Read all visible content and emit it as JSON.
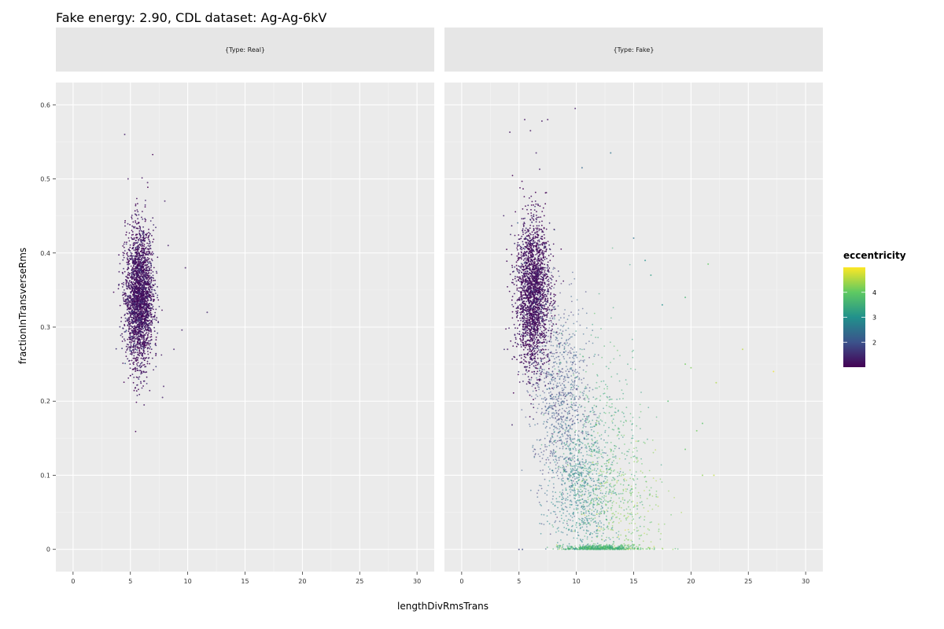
{
  "chart_data": {
    "type": "scatter",
    "title": "Fake energy: 2.90, CDL dataset: Ag-Ag-6kV",
    "xlabel": "lengthDivRmsTrans",
    "ylabel": "fractionInTransverseRms",
    "xlim": [
      -1.5,
      31.5
    ],
    "ylim": [
      -0.03,
      0.63
    ],
    "x_ticks": [
      0,
      5,
      10,
      15,
      20,
      25,
      30
    ],
    "x_tick_labels": [
      "0",
      "5",
      "10",
      "15",
      "20",
      "25",
      "30"
    ],
    "y_ticks": [
      0,
      0.1,
      0.2,
      0.3,
      0.4,
      0.5,
      0.6
    ],
    "y_tick_labels": [
      "0",
      "0.1",
      "0.2",
      "0.3",
      "0.4",
      "0.5",
      "0.6"
    ],
    "grid": true,
    "legend": {
      "title": "eccentricity",
      "placement": "right",
      "type": "colorbar",
      "range": [
        1.0,
        5.0
      ],
      "ticks": [
        2,
        3,
        4
      ],
      "tick_labels": [
        "2",
        "3",
        "4"
      ],
      "colors": [
        "#440154",
        "#3b528b",
        "#21918c",
        "#5ec962",
        "#fde725"
      ]
    },
    "facets": [
      {
        "strip_label": "{Type: Real}",
        "clusters": [
          {
            "center": [
              5.8,
              0.34
            ],
            "spread": [
              0.6,
              0.045
            ],
            "count": 2600,
            "eccentricity": 1.2
          }
        ],
        "outliers": [
          [
            4.5,
            0.56,
            1.3
          ],
          [
            11.7,
            0.32,
            1.4
          ],
          [
            9.8,
            0.38,
            1.3
          ],
          [
            9.5,
            0.296,
            1.3
          ],
          [
            8.0,
            0.47,
            1.3
          ],
          [
            8.3,
            0.41,
            1.3
          ],
          [
            7.9,
            0.22,
            1.3
          ],
          [
            8.8,
            0.27,
            1.3
          ],
          [
            4.8,
            0.5,
            1.2
          ],
          [
            6.5,
            0.495,
            1.2
          ],
          [
            6.2,
            0.195,
            1.2
          ],
          [
            7.8,
            0.205,
            1.3
          ]
        ]
      },
      {
        "strip_label": "{Type: Fake}",
        "clusters": [
          {
            "center": [
              6.2,
              0.345
            ],
            "spread": [
              0.75,
              0.05
            ],
            "count": 2200,
            "eccentricity": 1.15
          },
          {
            "center": [
              8.6,
              0.2
            ],
            "spread": [
              1.2,
              0.07
            ],
            "count": 900,
            "eccentricity": 2.0
          },
          {
            "center": [
              10.5,
              0.08
            ],
            "spread": [
              1.3,
              0.05
            ],
            "count": 700,
            "eccentricity": 2.8
          },
          {
            "center": [
              12.5,
              0.12
            ],
            "spread": [
              1.8,
              0.08
            ],
            "count": 500,
            "eccentricity": 3.5
          },
          {
            "center": [
              14.0,
              0.05
            ],
            "spread": [
              2.0,
              0.05
            ],
            "count": 350,
            "eccentricity": 4.2
          },
          {
            "center": [
              12.0,
              0.002
            ],
            "spread": [
              1.5,
              0.002
            ],
            "count": 450,
            "eccentricity": 3.6
          }
        ],
        "outliers": [
          [
            9.9,
            0.595,
            1.3
          ],
          [
            5.5,
            0.58,
            1.2
          ],
          [
            7.0,
            0.578,
            1.2
          ],
          [
            7.5,
            0.58,
            1.2
          ],
          [
            4.2,
            0.563,
            1.2
          ],
          [
            6.0,
            0.565,
            1.2
          ],
          [
            6.5,
            0.535,
            1.3
          ],
          [
            15.0,
            0.42,
            2.5
          ],
          [
            16.0,
            0.39,
            3.0
          ],
          [
            19.5,
            0.34,
            3.6
          ],
          [
            20.0,
            0.245,
            4.2
          ],
          [
            22.2,
            0.225,
            4.5
          ],
          [
            24.5,
            0.27,
            4.6
          ],
          [
            27.2,
            0.24,
            4.9
          ],
          [
            21.5,
            0.385,
            4.0
          ],
          [
            19.5,
            0.25,
            4.1
          ],
          [
            16.5,
            0.37,
            3.2
          ],
          [
            18.0,
            0.2,
            3.8
          ],
          [
            21.0,
            0.1,
            4.3
          ],
          [
            19.5,
            0.135,
            4.0
          ],
          [
            20.5,
            0.16,
            4.1
          ],
          [
            17.5,
            0.33,
            3.0
          ],
          [
            21.0,
            0.17,
            3.9
          ],
          [
            22.0,
            0.1,
            4.6
          ],
          [
            5.0,
            0.0,
            1.8
          ],
          [
            5.3,
            0.0,
            1.9
          ],
          [
            4.4,
            0.168,
            1.4
          ],
          [
            4.0,
            0.27,
            1.2
          ],
          [
            13.0,
            0.535,
            2.5
          ],
          [
            10.5,
            0.515,
            2.3
          ],
          [
            6.8,
            0.513,
            1.3
          ]
        ]
      }
    ]
  }
}
